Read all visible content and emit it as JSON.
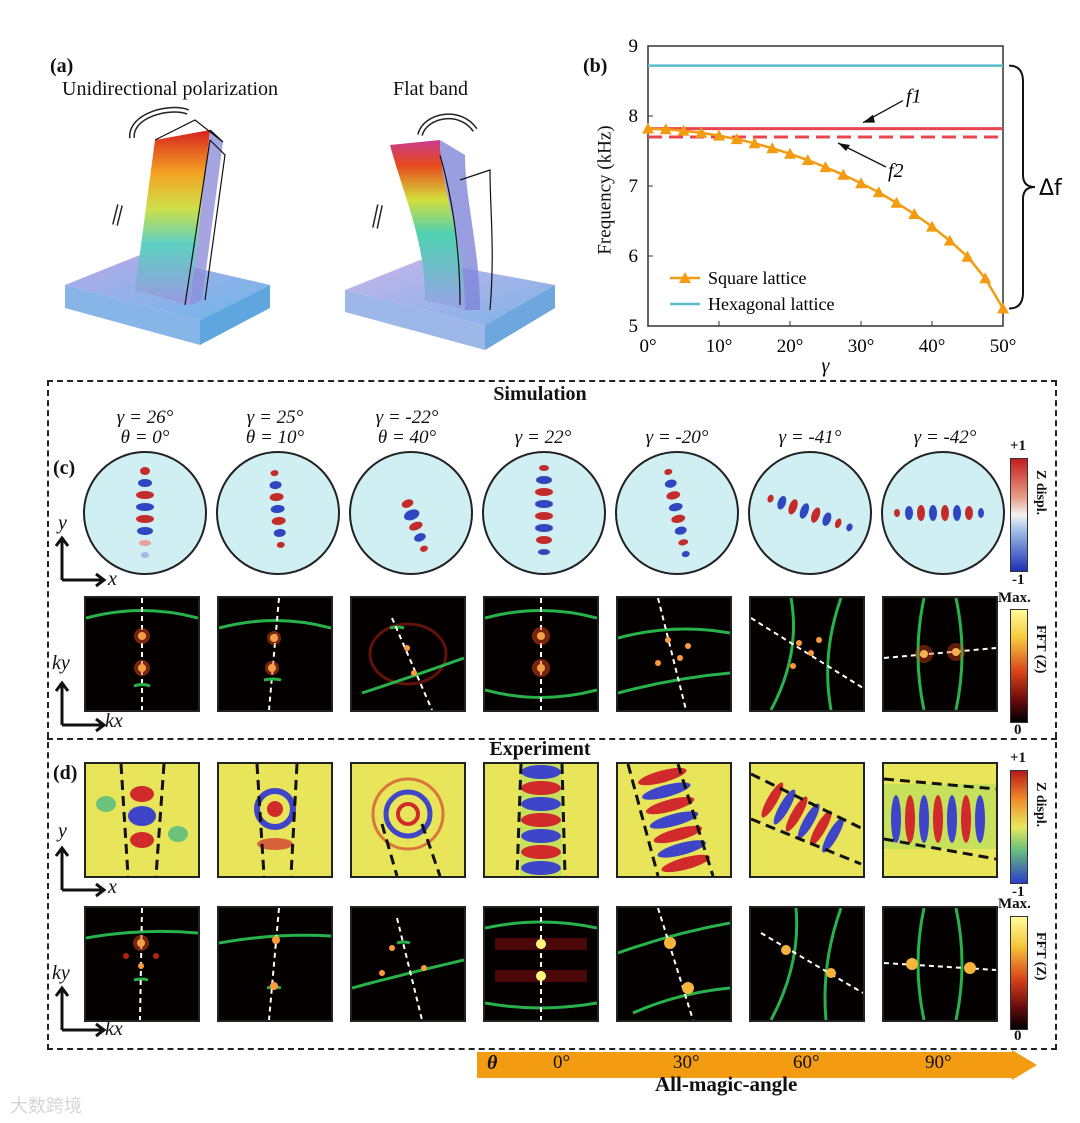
{
  "panel_labels": {
    "a": "(a)",
    "b": "(b)",
    "c": "(c)",
    "d": "(d)"
  },
  "panel_a": {
    "left_caption": "Unidirectional polarization",
    "right_caption": "Flat band"
  },
  "chart_data": {
    "type": "line",
    "xlabel": "γ",
    "ylabel": "Frequency (kHz)",
    "xlim": [
      0,
      50
    ],
    "ylim": [
      5,
      9
    ],
    "x_ticks": [
      "0°",
      "10°",
      "20°",
      "30°",
      "40°",
      "50°"
    ],
    "y_ticks": [
      "5",
      "6",
      "7",
      "8",
      "9"
    ],
    "series": [
      {
        "name": "Square lattice",
        "color": "#f39c12",
        "marker": "triangle",
        "x": [
          0,
          2.5,
          5,
          7.5,
          10,
          12.5,
          15,
          17.5,
          20,
          22.5,
          25,
          27.5,
          30,
          32.5,
          35,
          37.5,
          40,
          42.5,
          45,
          47.5,
          50
        ],
        "y": [
          7.82,
          7.81,
          7.79,
          7.76,
          7.72,
          7.67,
          7.61,
          7.54,
          7.46,
          7.37,
          7.27,
          7.16,
          7.04,
          6.91,
          6.76,
          6.6,
          6.42,
          6.22,
          5.99,
          5.68,
          5.25
        ]
      },
      {
        "name": "Hexagonal lattice",
        "color": "#5bbccc",
        "x": [
          0,
          50
        ],
        "y": [
          8.72,
          8.72
        ]
      }
    ],
    "reference_lines": [
      {
        "name": "f1",
        "y": 7.82,
        "color": "#e8454f",
        "style": "solid"
      },
      {
        "name": "f2",
        "y": 7.7,
        "color": "#e8454f",
        "style": "dashed"
      }
    ],
    "annotations": {
      "f1": "f1",
      "f2": "f2",
      "delta_f": "Δf"
    }
  },
  "simulation": {
    "title": "Simulation",
    "params": [
      {
        "gamma": "γ = 26°",
        "theta": "θ = 0°"
      },
      {
        "gamma": "γ = 25°",
        "theta": "θ = 10°"
      },
      {
        "gamma": "γ = -22°",
        "theta": "θ = 40°"
      },
      {
        "gamma": "γ = 22°",
        "theta": ""
      },
      {
        "gamma": "γ = -20°",
        "theta": ""
      },
      {
        "gamma": "γ = -41°",
        "theta": ""
      },
      {
        "gamma": "γ = -42°",
        "theta": ""
      }
    ],
    "colorbar_z": {
      "top": "+1",
      "bottom": "-1",
      "label": "Z displ."
    },
    "colorbar_fft": {
      "top": "Max.",
      "bottom": "0",
      "label": "FFT (Z)"
    }
  },
  "experiment": {
    "title": "Experiment",
    "colorbar_z": {
      "top": "+1",
      "bottom": "-1",
      "label": "Z displ."
    },
    "colorbar_fft": {
      "top": "Max.",
      "bottom": "0",
      "label": "FFT (Z)"
    }
  },
  "axes_labels": {
    "x": "x",
    "y": "y",
    "kx": "kx",
    "ky": "ky"
  },
  "angle_bar": {
    "symbol": "θ",
    "ticks": [
      "0°",
      "30°",
      "60°",
      "90°"
    ],
    "title": "All-magic-angle",
    "color": "#f39c12"
  },
  "watermark": "大数跨境"
}
